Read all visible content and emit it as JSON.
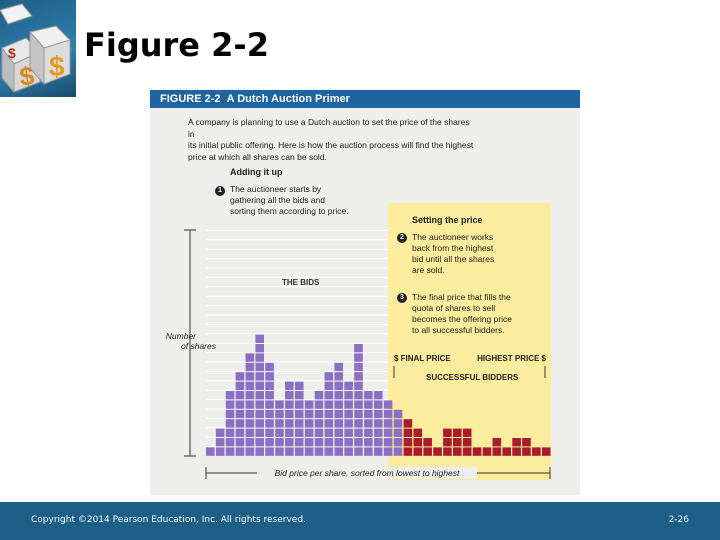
{
  "slide": {
    "title": "Figure 2-2",
    "copyright": "Copyright ©2014 Pearson Education, Inc. All rights reserved.",
    "page_number": "2-26"
  },
  "logo": {
    "icon": "dollar-dice-icon",
    "glyph": "$"
  },
  "figure": {
    "number": "FIGURE 2-2",
    "title": "A Dutch Auction Primer",
    "intro_lines": [
      "A company is planning to use a Dutch auction to set the price of the shares in",
      "its initial public offering. Here is how the auction process will find the highest",
      "price at which all shares can be sold."
    ],
    "adding_heading": "Adding it up",
    "step1_num": "1",
    "step1_lines": [
      "The auctioneer starts by",
      "gathering all the bids and",
      "sorting them according to price."
    ],
    "setting_heading": "Setting the price",
    "step2_num": "2",
    "step2_lines": [
      "The auctioneer works",
      "back from the highest",
      "bid until all the shares",
      "are sold."
    ],
    "step3_num": "3",
    "step3_lines": [
      "The final price that fills the",
      "quota of shares to sell",
      "becomes the offering price",
      "to all successful bidders."
    ],
    "bids_label": "THE BIDS",
    "ylabel_lines": [
      "Number",
      "of shares"
    ],
    "final_price_label": "$ FINAL PRICE",
    "highest_price_label": "HIGHEST PRICE $",
    "successful_label": "SUCCESSFUL BIDDERS",
    "xlabel": "Bid price per share, sorted from lowest to highest"
  },
  "colors": {
    "header_blue": "#1f63a0",
    "bid_purple": "#8b6fc2",
    "successful_red": "#a81c2c",
    "highlight_yellow": "#fcec9e",
    "footer_blue": "#1d5f86"
  },
  "chart_data": {
    "type": "bar",
    "bar_counts": [
      1,
      3,
      7,
      9,
      11,
      13,
      10,
      6,
      8,
      8,
      6,
      7,
      9,
      10,
      8,
      12,
      7,
      7,
      6,
      5,
      4,
      3,
      2,
      1,
      3,
      3,
      3,
      1,
      1,
      2,
      1,
      2,
      2,
      1,
      1
    ],
    "successful_from_index": 20
  }
}
